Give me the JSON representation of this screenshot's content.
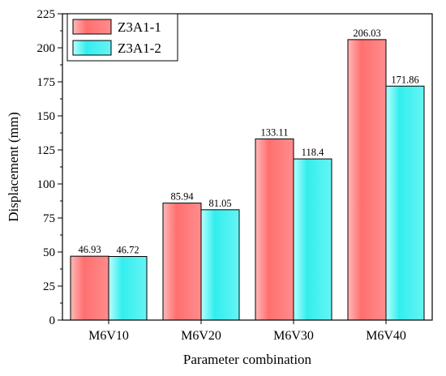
{
  "chart_data": {
    "type": "bar",
    "title": "",
    "xlabel": "Parameter combination",
    "ylabel": "Displacement (mm)",
    "categories": [
      "M6V10",
      "M6V20",
      "M6V30",
      "M6V40"
    ],
    "series": [
      {
        "name": "Z3A1-1",
        "values": [
          46.93,
          85.94,
          133.11,
          206.03
        ],
        "labels": [
          "46.93",
          "85.94",
          "133.11",
          "206.03"
        ],
        "color": "#ff7f7f"
      },
      {
        "name": "Z3A1-2",
        "values": [
          46.72,
          81.05,
          118.4,
          171.86
        ],
        "labels": [
          "46.72",
          "81.05",
          "118.4",
          "171.86"
        ],
        "color": "#4cf0f0"
      }
    ],
    "ylim": [
      0,
      225
    ],
    "yticks": [
      "0",
      "25",
      "50",
      "75",
      "100",
      "125",
      "150",
      "175",
      "200",
      "225"
    ],
    "grid": false,
    "legend_position": "top-left"
  }
}
